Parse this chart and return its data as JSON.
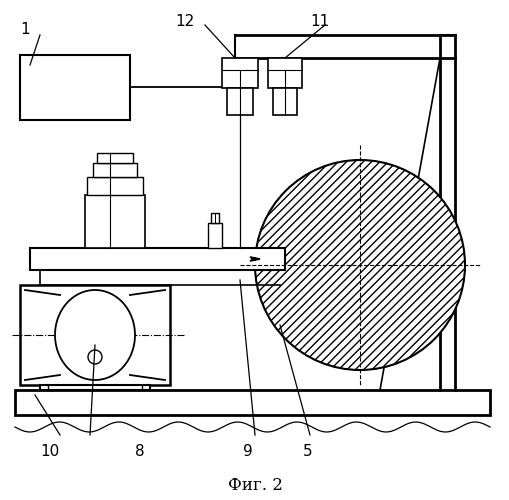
{
  "title": "Фиг. 2",
  "bg_color": "#ffffff",
  "lc": "#000000"
}
